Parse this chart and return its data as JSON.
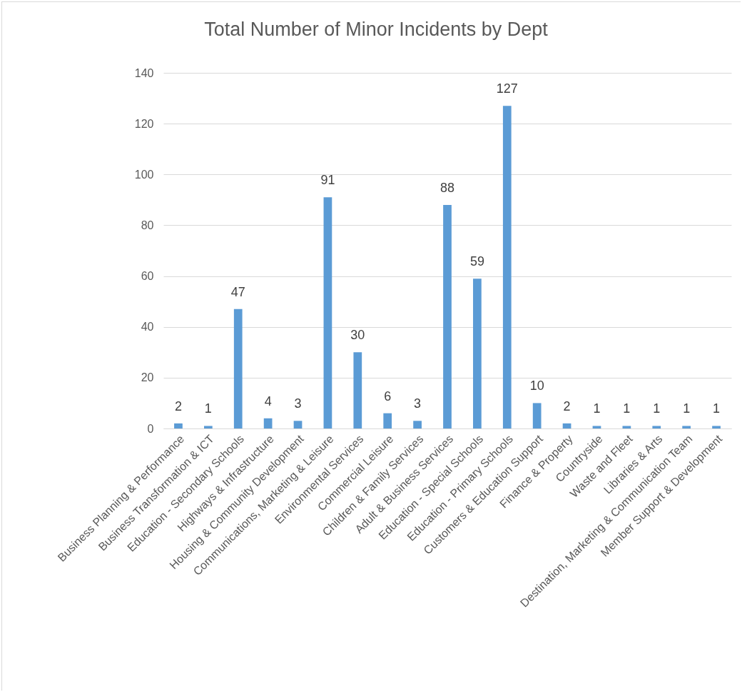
{
  "chart_data": {
    "type": "bar",
    "title": "Total Number of Minor Incidents by Dept",
    "categories": [
      "Business Planning & Performance",
      "Business Transformation & ICT",
      "Education - Secondary Schools",
      "Highways & Infrastructure",
      "Housing & Community Development",
      "Communications, Marketing & Leisure",
      "Environmental Services",
      "Commercial Leisure",
      "Children & Family Services",
      "Adult & Business Services",
      "Education - Special Schools",
      "Education - Primary Schools",
      "Customers & Education Support",
      "Finance & Property",
      "Countryside",
      "Waste and Fleet",
      "Libraries & Arts",
      "Destination, Marketing & Communication Team",
      "Member Support & Development"
    ],
    "values": [
      2,
      1,
      47,
      4,
      3,
      91,
      30,
      6,
      3,
      88,
      59,
      127,
      10,
      2,
      1,
      1,
      1,
      1,
      1
    ],
    "color": "#5b9bd5",
    "ylim": [
      0,
      140
    ],
    "yticks": [
      0,
      20,
      40,
      60,
      80,
      100,
      120,
      140
    ],
    "grid": "y",
    "data_labels": true
  }
}
